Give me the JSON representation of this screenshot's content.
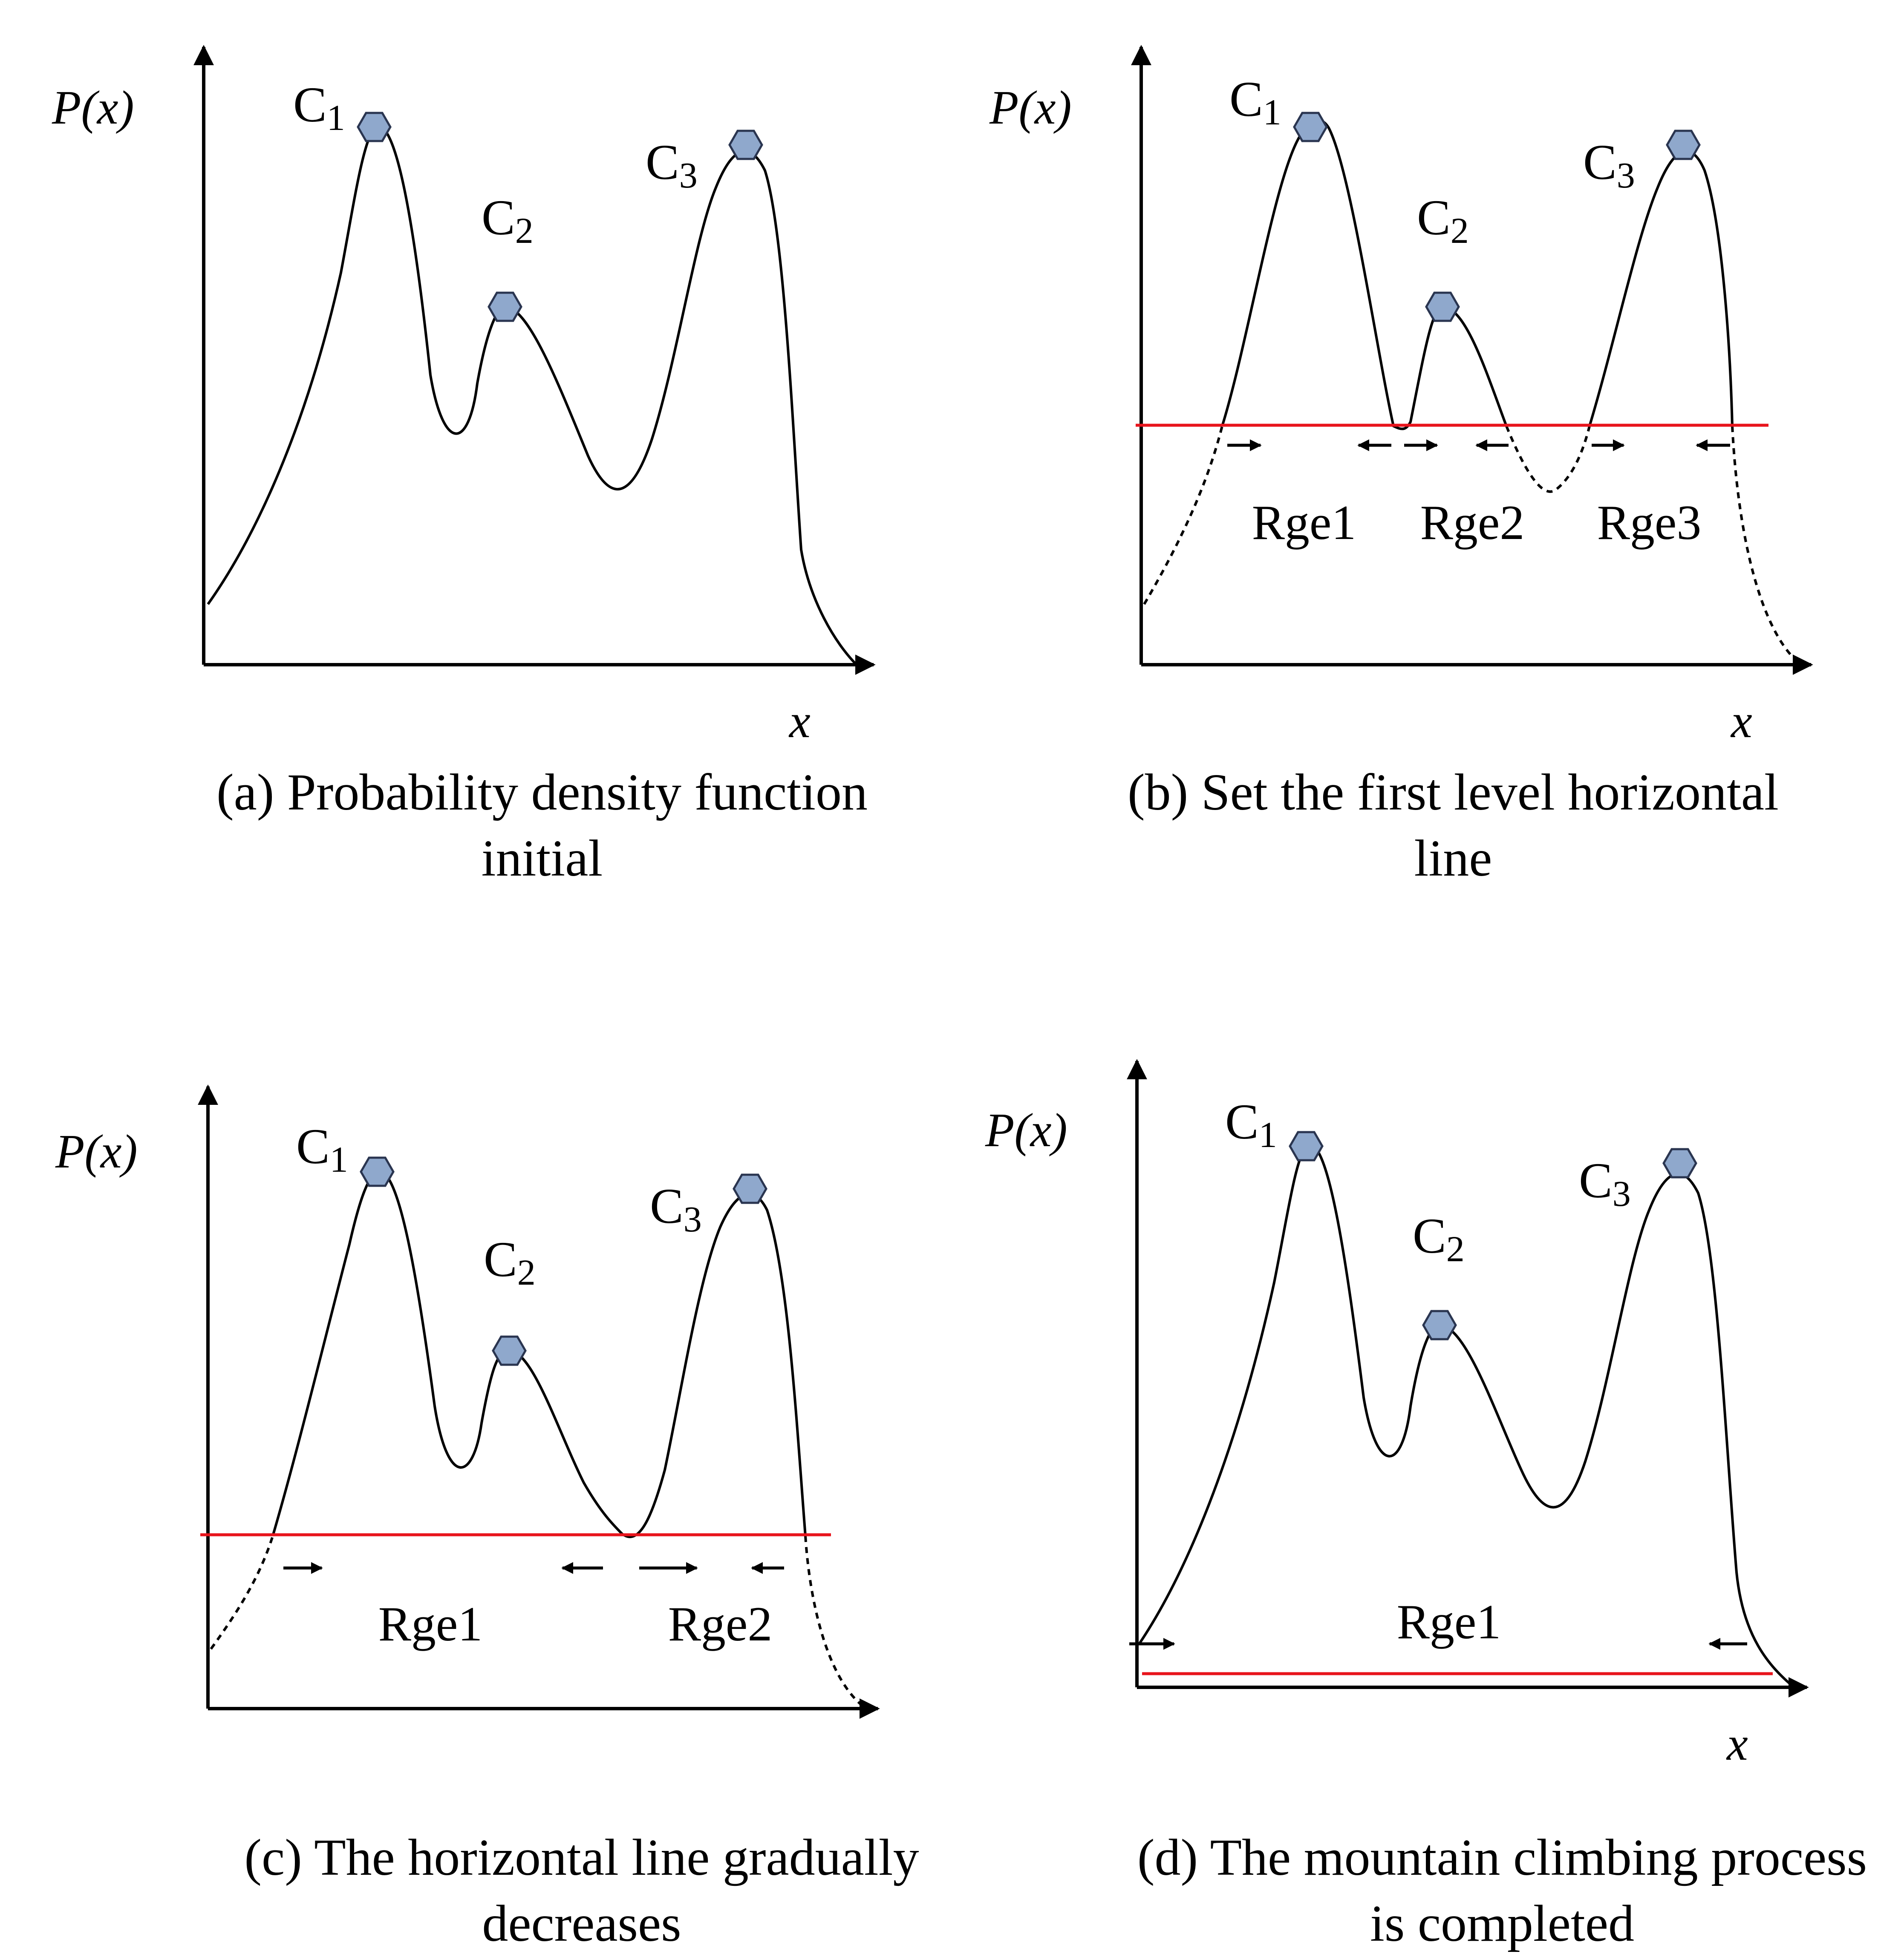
{
  "axes": {
    "y_label": "P(x)",
    "x_label": "x"
  },
  "peaks": [
    {
      "letter": "C",
      "index": "1"
    },
    {
      "letter": "C",
      "index": "2"
    },
    {
      "letter": "C",
      "index": "3"
    }
  ],
  "panels": {
    "a": {
      "caption_line1": "(a) Probability density function",
      "caption_line2": "initial"
    },
    "b": {
      "caption_line1": "(b) Set the first level horizontal",
      "caption_line2": "line",
      "ranges": [
        "Rge1",
        "Rge2",
        "Rge3"
      ]
    },
    "c": {
      "caption_line1": "(c) The horizontal line gradually",
      "caption_line2": "decreases",
      "ranges": [
        "Rge1",
        "Rge2"
      ]
    },
    "d": {
      "caption_line1": "(d) The mountain climbing process",
      "caption_line2": "is completed",
      "ranges": [
        "Rge1"
      ]
    }
  },
  "colors": {
    "curve": "#000000",
    "threshold_line": "#e8141c",
    "peak_marker_fill": "#8fa8cc",
    "peak_marker_stroke": "#2a3550"
  }
}
